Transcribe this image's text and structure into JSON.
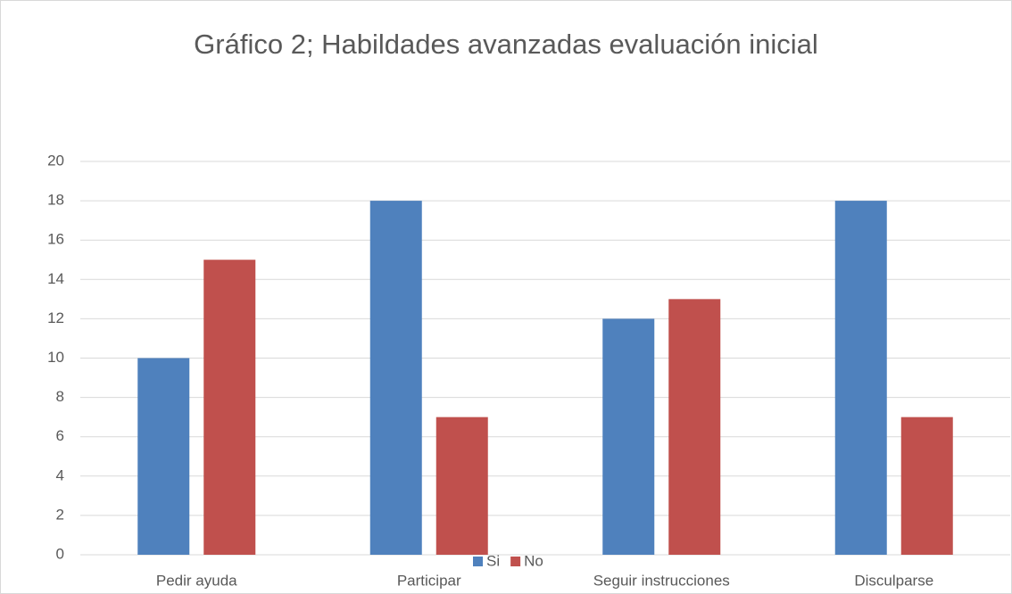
{
  "chart_data": {
    "type": "bar",
    "title": "Gráfico 2; Habildades avanzadas evaluación inicial",
    "categories": [
      "Pedir ayuda",
      "Participar",
      "Seguir instrucciones",
      "Disculparse"
    ],
    "series": [
      {
        "name": "Si",
        "color": "#4f81bd",
        "values": [
          10,
          18,
          12,
          18
        ]
      },
      {
        "name": "No",
        "color": "#c0504d",
        "values": [
          15,
          7,
          13,
          7
        ]
      }
    ],
    "ylim": [
      0,
      20
    ],
    "yticks": [
      0,
      2,
      4,
      6,
      8,
      10,
      12,
      14,
      16,
      18,
      20
    ],
    "grid": true,
    "legend": "bottom"
  }
}
